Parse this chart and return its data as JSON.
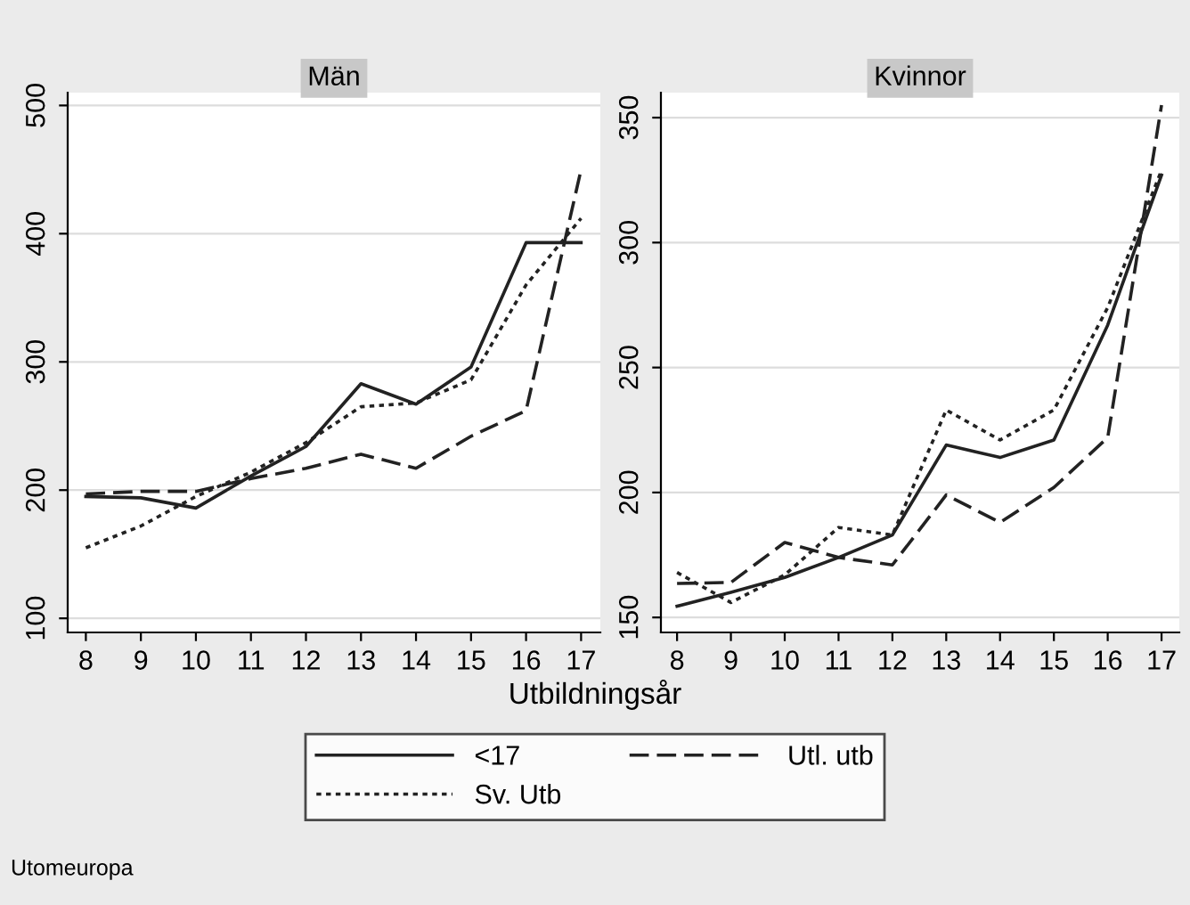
{
  "chart_data": [
    {
      "type": "line",
      "title": "Män",
      "xlabel": "Utbildningsår",
      "x": [
        8,
        9,
        10,
        11,
        12,
        13,
        14,
        15,
        16,
        17
      ],
      "xlim": [
        7.67,
        17.35
      ],
      "xticks": [
        8,
        9,
        10,
        11,
        12,
        13,
        14,
        15,
        16,
        17
      ],
      "ylim": [
        89,
        510
      ],
      "yticks": [
        100,
        200,
        300,
        400,
        500
      ],
      "grid": "y",
      "legend": "bottom",
      "annotations": [
        "Utomeuropa"
      ],
      "series": [
        {
          "name": "<17",
          "color": "#222222",
          "line_style": "solid",
          "values": [
            195,
            194,
            186,
            211,
            234,
            283,
            267,
            296,
            393,
            393
          ]
        },
        {
          "name": "Utl. utb",
          "color": "#222222",
          "line_style": "dashed",
          "values": [
            197,
            199,
            199,
            209,
            217,
            228,
            217,
            242,
            262,
            450
          ]
        },
        {
          "name": "Sv. Utb",
          "color": "#222222",
          "line_style": "dotted",
          "values": [
            155,
            172,
            195,
            214,
            237,
            265,
            268,
            286,
            360,
            412
          ]
        }
      ]
    },
    {
      "type": "line",
      "title": "Kvinnor",
      "x": [
        8,
        9,
        10,
        11,
        12,
        13,
        14,
        15,
        16,
        17
      ],
      "xlim": [
        7.7,
        17.33
      ],
      "xticks": [
        8,
        9,
        10,
        11,
        12,
        13,
        14,
        15,
        16,
        17
      ],
      "ylim": [
        144,
        360
      ],
      "yticks": [
        150,
        200,
        250,
        300,
        350
      ],
      "grid": "y",
      "series": [
        {
          "name": "<17",
          "color": "#222222",
          "line_style": "solid",
          "values": [
            154.5,
            160,
            166,
            174,
            183,
            219,
            214,
            221,
            267,
            327
          ]
        },
        {
          "name": "Utl. utb",
          "color": "#222222",
          "line_style": "dashed",
          "values": [
            163.6,
            164,
            180,
            174,
            171,
            199,
            188,
            202,
            222,
            355
          ]
        },
        {
          "name": "Sv. Utb",
          "color": "#222222",
          "line_style": "dotted",
          "values": [
            168,
            156,
            167,
            186,
            183,
            233,
            221,
            233,
            274,
            329
          ]
        }
      ]
    }
  ]
}
